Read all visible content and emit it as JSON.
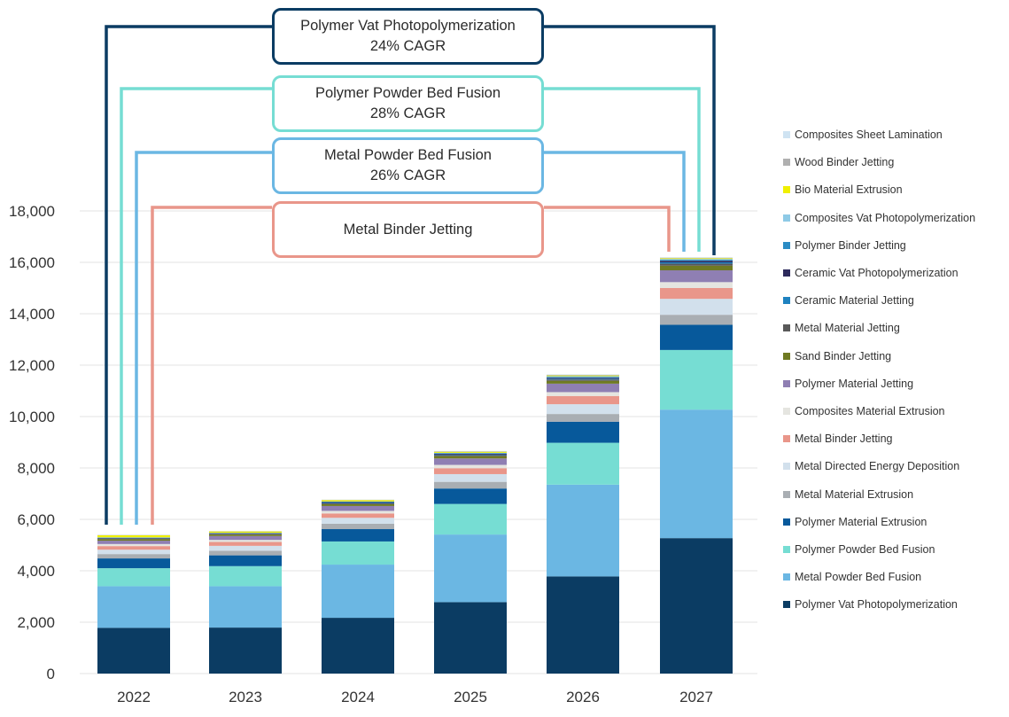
{
  "chart_data": {
    "type": "bar",
    "stacked": true,
    "categories": [
      "2022",
      "2023",
      "2024",
      "2025",
      "2026",
      "2027"
    ],
    "ylim": [
      0,
      18000
    ],
    "yticks": [
      "0",
      "2,000",
      "4,000",
      "6,000",
      "8,000",
      "10,000",
      "12,000",
      "14,000",
      "16,000",
      "18,000"
    ],
    "legend_position": "right",
    "series": [
      {
        "name": "Polymer Vat Photopolymerization",
        "color": "#0b3c63",
        "values": [
          1780,
          1790,
          2170,
          2780,
          3780,
          5270
        ]
      },
      {
        "name": "Metal Powder Bed Fusion",
        "color": "#6bb7e3",
        "values": [
          1620,
          1610,
          2070,
          2630,
          3570,
          5000
        ]
      },
      {
        "name": "Polymer Powder Bed Fusion",
        "color": "#76ddd3",
        "values": [
          700,
          780,
          900,
          1190,
          1630,
          2320
        ]
      },
      {
        "name": "Polymer Material Extrusion",
        "color": "#07599b",
        "values": [
          380,
          420,
          480,
          600,
          820,
          980
        ]
      },
      {
        "name": "Metal Material Extrusion",
        "color": "#a9aeb3",
        "values": [
          170,
          180,
          210,
          260,
          300,
          390
        ]
      },
      {
        "name": "Metal Directed Energy Deposition",
        "color": "#d2e0ec",
        "values": [
          170,
          190,
          230,
          300,
          380,
          620
        ]
      },
      {
        "name": "Metal Binder Jetting",
        "color": "#e9968a",
        "values": [
          140,
          150,
          170,
          230,
          320,
          420
        ]
      },
      {
        "name": "Composites Material Extrusion",
        "color": "#e5e5e0",
        "values": [
          80,
          80,
          100,
          130,
          150,
          230
        ]
      },
      {
        "name": "Polymer Material Jetting",
        "color": "#8f7fb3",
        "values": [
          130,
          150,
          190,
          250,
          330,
          460
        ]
      },
      {
        "name": "Sand Binder Jetting",
        "color": "#6f7a22",
        "values": [
          60,
          60,
          70,
          90,
          110,
          180
        ]
      },
      {
        "name": "Metal Material Jetting",
        "color": "#595959",
        "values": [
          20,
          20,
          30,
          40,
          50,
          80
        ]
      },
      {
        "name": "Ceramic Material Jetting",
        "color": "#1f82c0",
        "values": [
          10,
          10,
          20,
          20,
          30,
          50
        ]
      },
      {
        "name": "Ceramic Vat Photopolymerization",
        "color": "#2d2a5c",
        "values": [
          20,
          20,
          30,
          30,
          40,
          60
        ]
      },
      {
        "name": "Polymer Binder Jetting",
        "color": "#2b8cc4",
        "values": [
          10,
          10,
          20,
          20,
          30,
          40
        ]
      },
      {
        "name": "Composites Vat Photopolymerization",
        "color": "#8ecae6",
        "values": [
          10,
          10,
          10,
          20,
          30,
          30
        ]
      },
      {
        "name": "Bio Material Extrusion",
        "color": "#f0f000",
        "values": [
          80,
          50,
          50,
          40,
          30,
          30
        ]
      },
      {
        "name": "Wood Binder Jetting",
        "color": "#b0b0b0",
        "values": [
          10,
          10,
          10,
          20,
          20,
          20
        ]
      },
      {
        "name": "Composites Sheet Lamination",
        "color": "#cfe3f2",
        "values": [
          10,
          10,
          10,
          10,
          20,
          20
        ]
      }
    ],
    "annotations": [
      {
        "line1": "Polymer Vat Photopolymerization",
        "line2": "24% CAGR",
        "color": "#0b3c63",
        "from_year": "2022",
        "to_year": "2027"
      },
      {
        "line1": "Polymer Powder Bed Fusion",
        "line2": "28% CAGR",
        "color": "#76ddd3",
        "from_year": "2022",
        "to_year": "2027"
      },
      {
        "line1": "Metal Powder Bed Fusion",
        "line2": "26% CAGR",
        "color": "#6bb7e3",
        "from_year": "2022",
        "to_year": "2027"
      },
      {
        "line1": "Metal Binder Jetting",
        "line2": "",
        "color": "#e9968a",
        "from_year": "2022",
        "to_year": "2027"
      }
    ]
  }
}
